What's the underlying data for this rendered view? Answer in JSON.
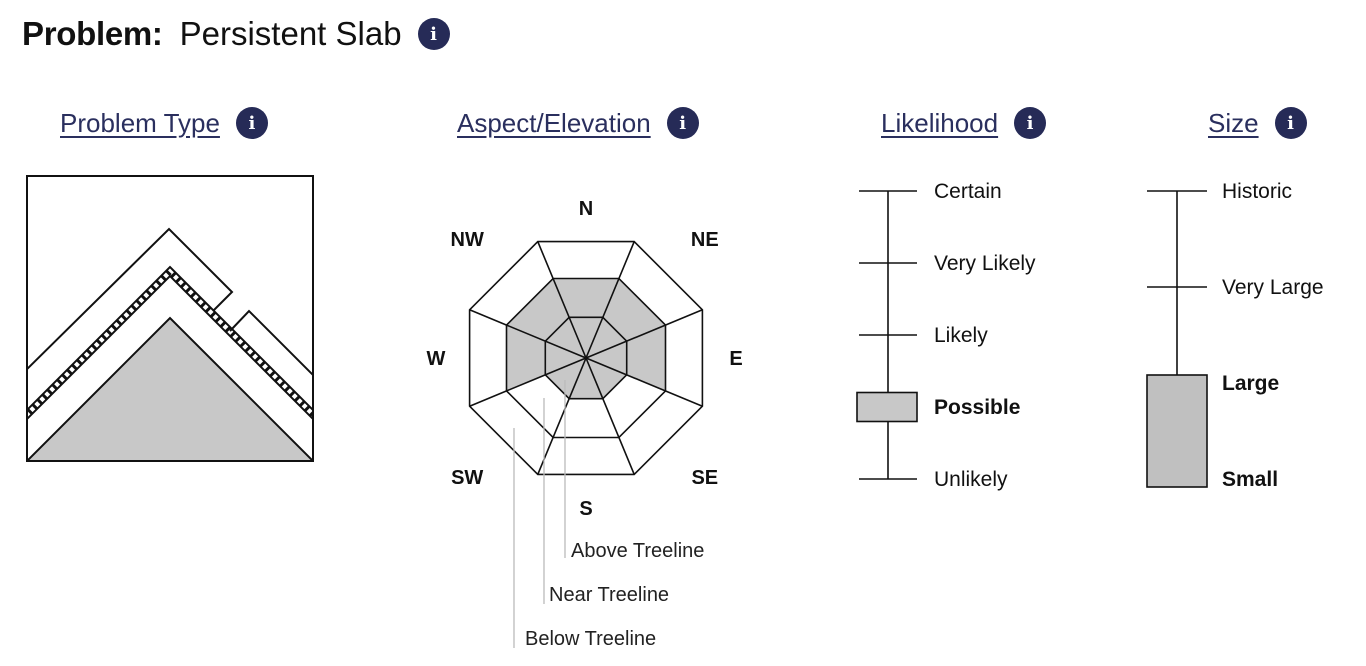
{
  "problem": {
    "label": "Problem:",
    "name": "Persistent Slab"
  },
  "info_glyph": "i",
  "sections": {
    "problem_type": "Problem Type",
    "aspect_elevation": "Aspect/Elevation",
    "likelihood": "Likelihood",
    "size": "Size"
  },
  "rose": {
    "aspects": [
      "N",
      "NE",
      "E",
      "SE",
      "S",
      "SW",
      "W",
      "NW"
    ],
    "elevations": [
      "Above Treeline",
      "Near Treeline",
      "Below Treeline"
    ],
    "highlighted": {
      "above": [
        "N",
        "NE",
        "E",
        "SE",
        "S",
        "SW",
        "W",
        "NW"
      ],
      "near": [
        "N",
        "NE",
        "E",
        "W",
        "NW"
      ],
      "below": []
    }
  },
  "likelihood": {
    "levels": [
      "Unlikely",
      "Possible",
      "Likely",
      "Very Likely",
      "Certain"
    ],
    "selected": [
      "Possible"
    ]
  },
  "size": {
    "levels": [
      "Small",
      "Large",
      "Very Large",
      "Historic"
    ],
    "selected_range": [
      "Small",
      "Large"
    ]
  },
  "colors": {
    "accent": "#262b57",
    "highlight_fill": "#c8c8c8",
    "line": "#111111"
  }
}
